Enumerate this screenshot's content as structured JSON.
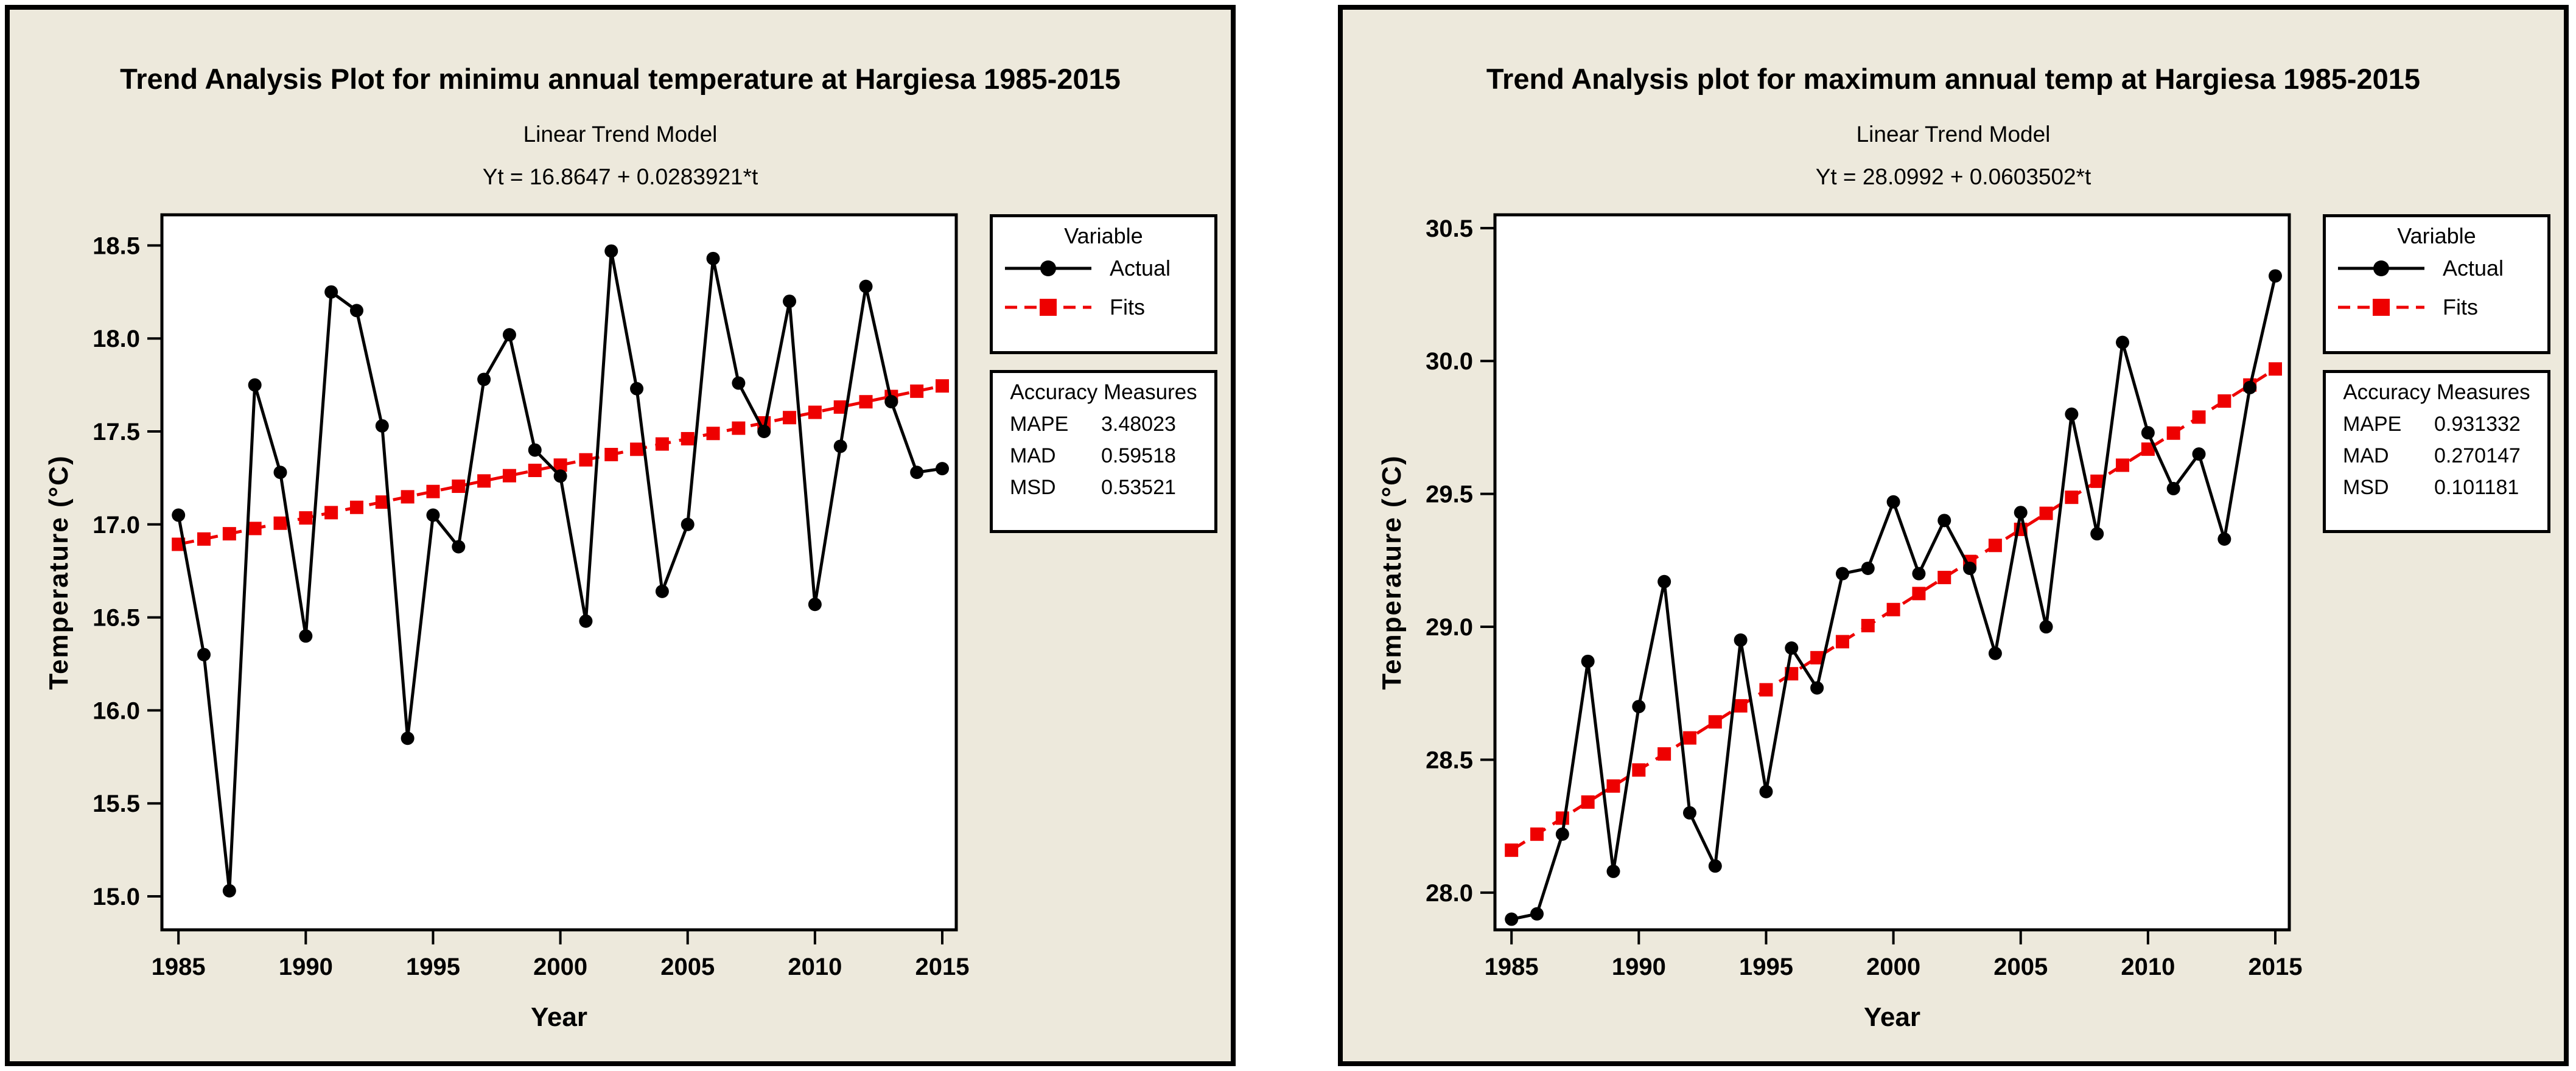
{
  "page": {
    "background_color": "#ffffff",
    "panel_background": "#ede9dc",
    "series_black": "#000000",
    "accent_red": "#ee0000"
  },
  "chart_data": [
    {
      "type": "line",
      "title": "Trend Analysis Plot for minimu annual temperature at Hargiesa 1985-2015",
      "subtitle": "Linear Trend Model",
      "equation": "Yt = 16.8647 + 0.0283921*t",
      "xlabel": "Year",
      "ylabel": "Temperature (°C)",
      "x": [
        1985,
        1986,
        1987,
        1988,
        1989,
        1990,
        1991,
        1992,
        1993,
        1994,
        1995,
        1996,
        1997,
        1998,
        1999,
        2000,
        2001,
        2002,
        2003,
        2004,
        2005,
        2006,
        2007,
        2008,
        2009,
        2010,
        2011,
        2012,
        2013,
        2014,
        2015
      ],
      "series": [
        {
          "name": "Actual",
          "color": "#000000",
          "marker": "circle",
          "line_style": "solid",
          "values": [
            17.05,
            16.3,
            15.03,
            17.75,
            17.28,
            16.4,
            18.25,
            18.15,
            17.53,
            15.85,
            17.05,
            16.88,
            17.78,
            18.02,
            17.4,
            17.26,
            16.48,
            18.47,
            17.73,
            16.64,
            17.0,
            18.43,
            17.76,
            17.5,
            18.2,
            16.57,
            17.42,
            18.28,
            17.66,
            17.28,
            17.3
          ]
        },
        {
          "name": "Fits",
          "color": "#ee0000",
          "marker": "square",
          "line_style": "dashed",
          "fit": {
            "intercept": 16.8647,
            "slope": 0.0283921
          }
        }
      ],
      "legend": {
        "header": "Variable",
        "items": [
          {
            "label": "Actual"
          },
          {
            "label": "Fits"
          }
        ]
      },
      "accuracy": {
        "header": "Accuracy Measures",
        "rows": [
          {
            "name": "MAPE",
            "value": "3.48023"
          },
          {
            "name": "MAD",
            "value": "0.59518"
          },
          {
            "name": "MSD",
            "value": "0.53521"
          }
        ]
      },
      "xticks": [
        1985,
        1990,
        1995,
        2000,
        2005,
        2010,
        2015
      ],
      "yticks": [
        18.5,
        18.0,
        17.5,
        17.0,
        16.5,
        16.0,
        15.5,
        15.0
      ],
      "xlim": [
        1984.35,
        2015.55
      ],
      "ylim": [
        14.82,
        18.665
      ],
      "grid": false,
      "legend_position": "right-outside"
    },
    {
      "type": "line",
      "title": "Trend Analysis plot for maximum annual temp at Hargiesa 1985-2015",
      "subtitle": "Linear Trend Model",
      "equation": "Yt = 28.0992 + 0.0603502*t",
      "xlabel": "Year",
      "ylabel": "Temperature (°C)",
      "x": [
        1985,
        1986,
        1987,
        1988,
        1989,
        1990,
        1991,
        1992,
        1993,
        1994,
        1995,
        1996,
        1997,
        1998,
        1999,
        2000,
        2001,
        2002,
        2003,
        2004,
        2005,
        2006,
        2007,
        2008,
        2009,
        2010,
        2011,
        2012,
        2013,
        2014,
        2015
      ],
      "series": [
        {
          "name": "Actual",
          "color": "#000000",
          "marker": "circle",
          "line_style": "solid",
          "values": [
            27.9,
            27.92,
            28.22,
            28.87,
            28.08,
            28.7,
            29.17,
            28.3,
            28.1,
            28.95,
            28.38,
            28.92,
            28.77,
            29.2,
            29.22,
            29.47,
            29.2,
            29.4,
            29.22,
            28.9,
            29.43,
            29.0,
            29.8,
            29.35,
            30.07,
            29.73,
            29.52,
            29.65,
            29.33,
            29.9,
            30.32
          ]
        },
        {
          "name": "Fits",
          "color": "#ee0000",
          "marker": "square",
          "line_style": "dashed",
          "fit": {
            "intercept": 28.0992,
            "slope": 0.0603502
          }
        }
      ],
      "legend": {
        "header": "Variable",
        "items": [
          {
            "label": "Actual"
          },
          {
            "label": "Fits"
          }
        ]
      },
      "accuracy": {
        "header": "Accuracy Measures",
        "rows": [
          {
            "name": "MAPE",
            "value": "0.931332"
          },
          {
            "name": "MAD",
            "value": "0.270147"
          },
          {
            "name": "MSD",
            "value": "0.101181"
          }
        ]
      },
      "xticks": [
        1985,
        1990,
        1995,
        2000,
        2005,
        2010,
        2015
      ],
      "yticks": [
        30.5,
        30.0,
        29.5,
        29.0,
        28.5,
        28.0
      ],
      "xlim": [
        1984.35,
        2015.55
      ],
      "ylim": [
        27.86,
        30.55
      ],
      "grid": false,
      "legend_position": "right-outside"
    }
  ]
}
